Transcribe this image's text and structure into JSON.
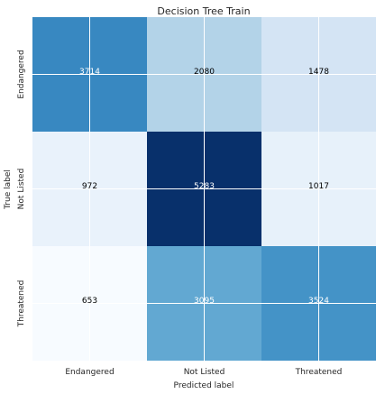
{
  "chart_data": {
    "type": "heatmap",
    "title": "Decision Tree Train",
    "xlabel": "Predicted label",
    "ylabel": "True label",
    "x_categories": [
      "Endangered",
      "Not Listed",
      "Threatened"
    ],
    "y_categories": [
      "Endangered",
      "Not Listed",
      "Threatened"
    ],
    "values": [
      [
        3714,
        2080,
        1478
      ],
      [
        972,
        5283,
        1017
      ],
      [
        653,
        3095,
        3524
      ]
    ],
    "colormap": "Blues",
    "colors": {
      "low": "#f7fbff",
      "high": "#08306b",
      "grid": "#ffffff",
      "text_dark": "#000000",
      "text_light": "#ffffff"
    },
    "grid": true,
    "legend": "none"
  }
}
